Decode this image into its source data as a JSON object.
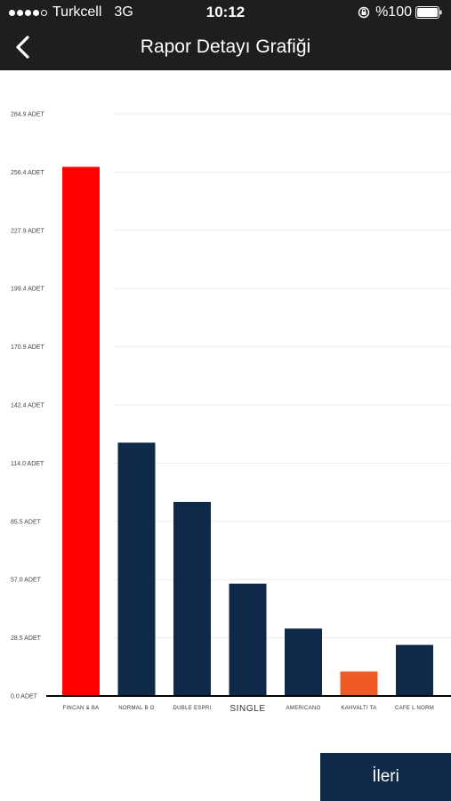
{
  "status_bar": {
    "carrier": "Turkcell",
    "network": "3G",
    "time": "10:12",
    "battery": "%100",
    "icons": [
      "signal-dots-icon",
      "rotation-lock-icon",
      "battery-icon"
    ]
  },
  "nav": {
    "title": "Rapor Detayı Grafiği",
    "back_icon": "chevron-left-icon"
  },
  "colors": {
    "bar_primary": "#0f2a48",
    "bar_max": "#ff0000",
    "bar_min": "#f05a24",
    "header": "#1e1e1e",
    "grid": "#ececec"
  },
  "chart_data": {
    "type": "bar",
    "categories": [
      "FINCAN & BA",
      "NORMAL B O",
      "DUBLE ESPRI",
      "SINGLE",
      "AMERICANO",
      "KAHVALTI TA",
      "CAFE L NORM"
    ],
    "values": [
      259,
      124,
      95,
      55,
      33,
      12,
      25
    ],
    "y_ticks": [
      "0.0 ADET",
      "28.5 ADET",
      "57.0 ADET",
      "85.5 ADET",
      "114.0 ADET",
      "142.4 ADET",
      "170.9 ADET",
      "199.4 ADET",
      "227.9 ADET",
      "256.4 ADET",
      "284.9 ADET"
    ],
    "ylim": [
      0,
      284.9
    ],
    "grid": true
  },
  "footer": {
    "next_label": "İleri"
  }
}
